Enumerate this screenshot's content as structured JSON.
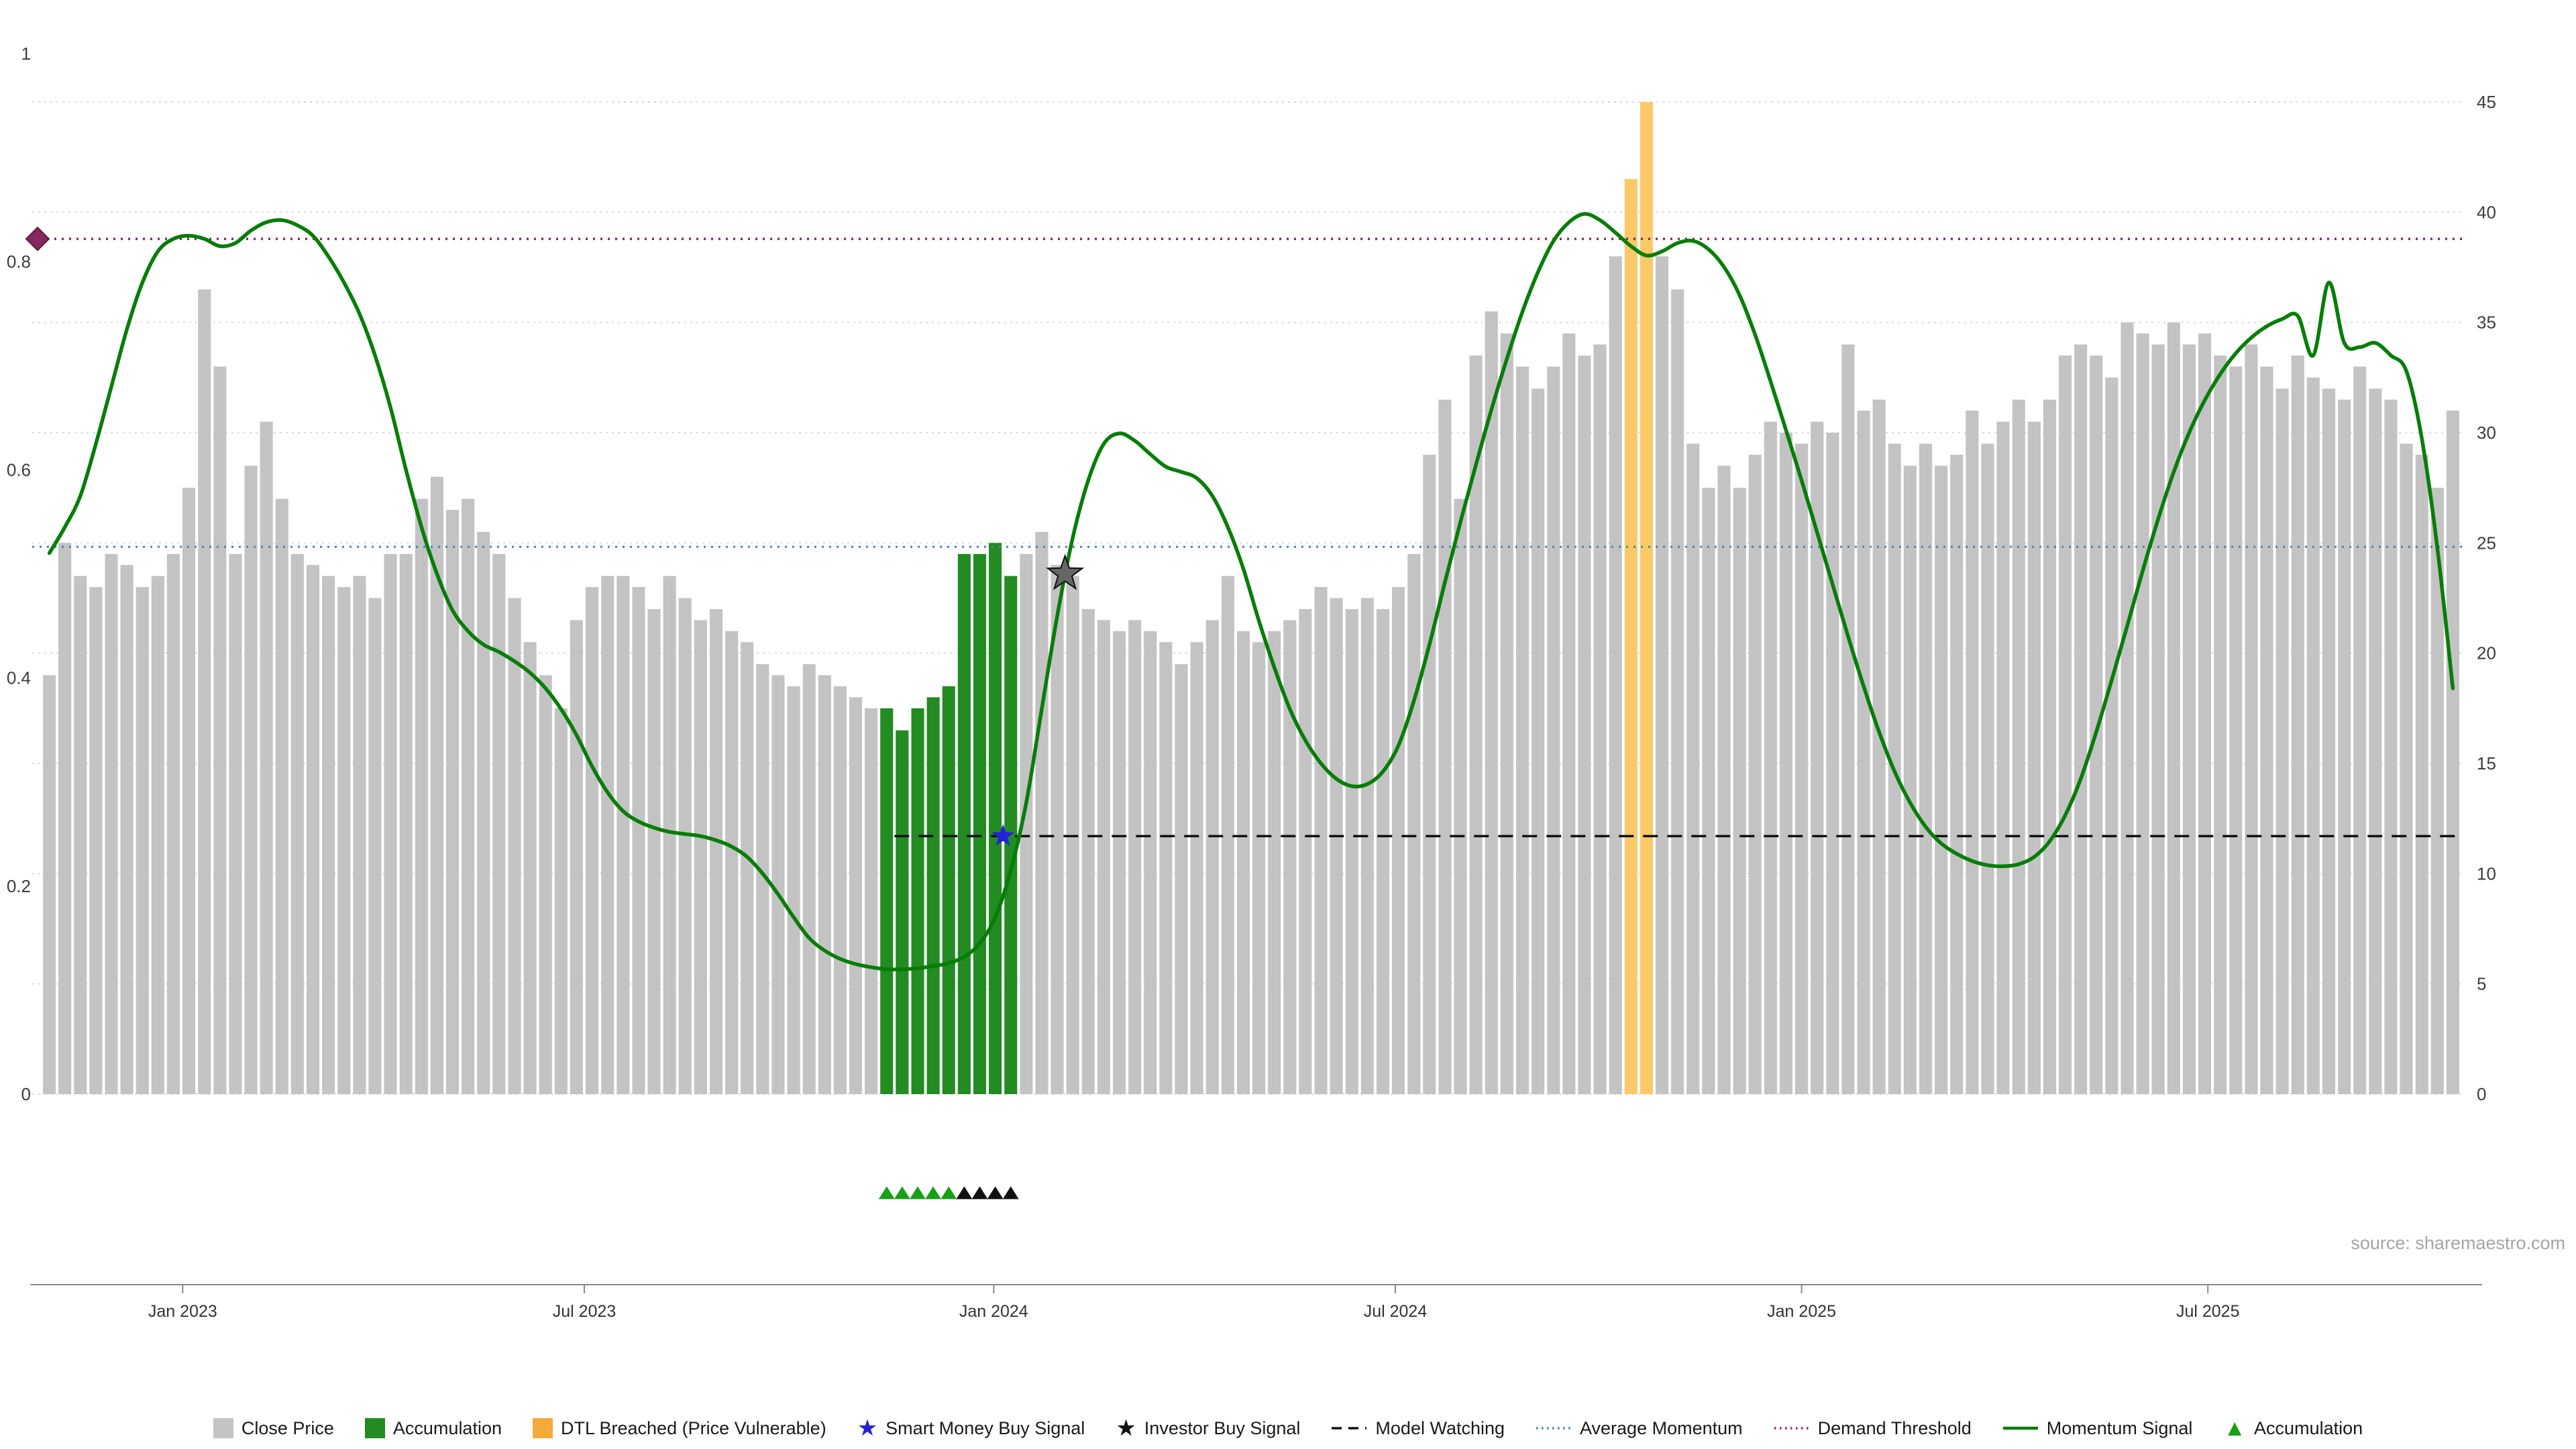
{
  "source": "source: sharemaestro.com",
  "colors": {
    "close_price": "#c3c3c3",
    "accumulation": "#228b22",
    "dtl_breached": "#fbca67",
    "dtl_legend": "#f5a93b",
    "momentum": "#067d06",
    "average_momentum": "#4682b4",
    "demand_threshold": "#86275f",
    "model_watching": "#111111",
    "smart_money": "#2222dd",
    "investor": "#666666",
    "triangle_green": "#16a016",
    "triangle_black": "#111111",
    "grid": "#dcdcdc",
    "axis_line": "#8a8a8a",
    "axis_text": "#3c3c3c",
    "source_text": "#a5a5a5"
  },
  "legend": [
    {
      "label": "Close Price",
      "swatch": "square",
      "color_key": "close_price"
    },
    {
      "label": "Accumulation",
      "swatch": "square",
      "color_key": "accumulation"
    },
    {
      "label": "DTL Breached (Price Vulnerable)",
      "swatch": "square",
      "color_key": "dtl_legend"
    },
    {
      "label": "Smart Money Buy Signal",
      "swatch": "star",
      "color_key": "smart_money"
    },
    {
      "label": "Investor Buy Signal",
      "swatch": "star",
      "color_key": "triangle_black"
    },
    {
      "label": "Model Watching",
      "swatch": "dashed-line",
      "color_key": "model_watching"
    },
    {
      "label": "Average Momentum",
      "swatch": "dotted-line",
      "color_key": "average_momentum"
    },
    {
      "label": "Demand Threshold",
      "swatch": "dotted-line",
      "color_key": "demand_threshold"
    },
    {
      "label": "Momentum Signal",
      "swatch": "line",
      "color_key": "momentum"
    },
    {
      "label": "Accumulation",
      "swatch": "triangle",
      "color_key": "triangle_green"
    }
  ],
  "chart_data": {
    "type": "bar+line",
    "title": "",
    "grid": true,
    "x_axis": {
      "unit": "week",
      "n_bars": 156,
      "ticks": [
        {
          "index": 8.6,
          "label": "Jan 2023"
        },
        {
          "index": 34.5,
          "label": "Jul 2023"
        },
        {
          "index": 60.9,
          "label": "Jan 2024"
        },
        {
          "index": 86.8,
          "label": "Jul 2024"
        },
        {
          "index": 113.0,
          "label": "Jan 2025"
        },
        {
          "index": 139.2,
          "label": "Jul 2025"
        }
      ]
    },
    "left_axis": {
      "min": 0,
      "max": 1,
      "ticks": [
        0,
        0.2,
        0.4,
        0.6,
        0.8,
        1
      ]
    },
    "right_axis": {
      "min": 0,
      "max": 45,
      "ticks": [
        0,
        5,
        10,
        15,
        20,
        25,
        30,
        35,
        40,
        45
      ]
    },
    "close_price": {
      "axis": "right",
      "values": [
        19,
        25,
        23.5,
        23,
        24.5,
        24,
        23,
        23.5,
        24.5,
        27.5,
        36.5,
        33,
        24.5,
        28.5,
        30.5,
        27,
        24.5,
        24,
        23.5,
        23,
        23.5,
        22.5,
        24.5,
        24.5,
        27,
        28,
        26.5,
        27,
        25.5,
        24.5,
        22.5,
        20.5,
        19,
        17.5,
        21.5,
        23,
        23.5,
        23.5,
        23,
        22,
        23.5,
        22.5,
        21.5,
        22,
        21,
        20.5,
        19.5,
        19,
        18.5,
        19.5,
        19,
        18.5,
        18,
        17.5,
        17.5,
        16.5,
        17.5,
        18,
        18.5,
        24.5,
        24.5,
        25,
        23.5,
        24.5,
        25.5,
        24,
        23.5,
        22,
        21.5,
        21,
        21.5,
        21,
        20.5,
        19.5,
        20.5,
        21.5,
        23.5,
        21,
        20.5,
        21,
        21.5,
        22,
        23,
        22.5,
        22,
        22.5,
        22,
        23,
        24.5,
        29,
        31.5,
        27,
        33.5,
        35.5,
        34.5,
        33,
        32,
        33,
        34.5,
        33.5,
        34,
        38,
        41.5,
        45,
        38,
        36.5,
        29.5,
        27.5,
        28.5,
        27.5,
        29,
        30.5,
        30,
        29.5,
        30.5,
        30,
        34,
        31,
        31.5,
        29.5,
        28.5,
        29.5,
        28.5,
        29,
        31,
        29.5,
        30.5,
        31.5,
        30.5,
        31.5,
        33.5,
        34,
        33.5,
        32.5,
        35,
        34.5,
        34,
        35,
        34,
        34.5,
        33.5,
        33,
        34,
        33,
        32,
        33.5,
        32.5,
        32,
        31.5,
        33,
        32,
        31.5,
        29.5,
        29,
        27.5,
        31
      ]
    },
    "bar_colors": {
      "default_key": "close_price",
      "accumulation_indices": [
        54,
        55,
        56,
        57,
        58,
        59,
        60,
        61,
        62
      ],
      "dtl_breached_indices": [
        102,
        103
      ]
    },
    "momentum_signal": {
      "axis": "left",
      "values": [
        0.52,
        0.545,
        0.575,
        0.625,
        0.68,
        0.735,
        0.78,
        0.81,
        0.822,
        0.825,
        0.822,
        0.815,
        0.818,
        0.83,
        0.838,
        0.84,
        0.835,
        0.825,
        0.805,
        0.78,
        0.75,
        0.71,
        0.66,
        0.6,
        0.545,
        0.5,
        0.465,
        0.445,
        0.432,
        0.425,
        0.416,
        0.405,
        0.39,
        0.37,
        0.345,
        0.315,
        0.29,
        0.272,
        0.262,
        0.256,
        0.252,
        0.25,
        0.248,
        0.244,
        0.238,
        0.228,
        0.212,
        0.192,
        0.17,
        0.15,
        0.138,
        0.13,
        0.125,
        0.122,
        0.12,
        0.12,
        0.121,
        0.123,
        0.126,
        0.132,
        0.145,
        0.17,
        0.215,
        0.28,
        0.37,
        0.46,
        0.535,
        0.59,
        0.625,
        0.635,
        0.628,
        0.615,
        0.603,
        0.598,
        0.592,
        0.575,
        0.545,
        0.505,
        0.455,
        0.41,
        0.37,
        0.34,
        0.318,
        0.303,
        0.296,
        0.298,
        0.31,
        0.335,
        0.378,
        0.432,
        0.492,
        0.55,
        0.605,
        0.658,
        0.707,
        0.752,
        0.79,
        0.82,
        0.838,
        0.846,
        0.84,
        0.828,
        0.815,
        0.806,
        0.81,
        0.818,
        0.82,
        0.812,
        0.795,
        0.768,
        0.73,
        0.685,
        0.638,
        0.59,
        0.54,
        0.49,
        0.44,
        0.392,
        0.348,
        0.31,
        0.28,
        0.257,
        0.241,
        0.231,
        0.224,
        0.22,
        0.219,
        0.221,
        0.228,
        0.243,
        0.268,
        0.303,
        0.348,
        0.398,
        0.45,
        0.503,
        0.553,
        0.598,
        0.636,
        0.667,
        0.692,
        0.712,
        0.727,
        0.738,
        0.745,
        0.748,
        0.71,
        0.78,
        0.722,
        0.718,
        0.722,
        0.71,
        0.695,
        0.63,
        0.525,
        0.39
      ]
    },
    "average_momentum": {
      "axis": "left",
      "value": 0.526
    },
    "demand_threshold": {
      "axis": "left",
      "value": 0.822
    },
    "model_watching": {
      "axis": "left",
      "value": 0.248,
      "start_index": 55
    },
    "markers": {
      "demand_diamond": {
        "index": 0,
        "value": 0.822
      },
      "smart_money_buy": {
        "index": 61.5,
        "value": 0.248
      },
      "investor_buy": {
        "index": 65.5,
        "value": 0.5
      },
      "accumulation_triangles_green": [
        54,
        55,
        56,
        57,
        58
      ],
      "accumulation_triangles_black": [
        59,
        60,
        61,
        62
      ]
    }
  }
}
